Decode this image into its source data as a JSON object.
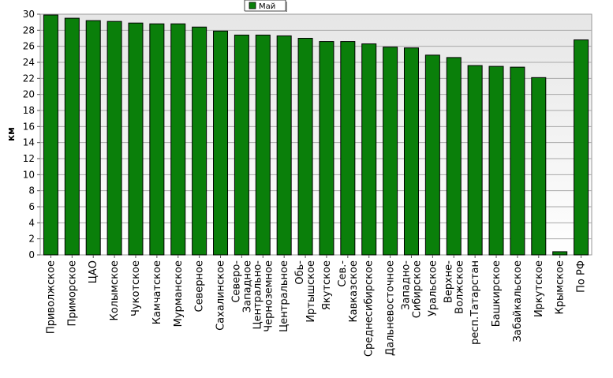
{
  "chart_data": {
    "type": "bar",
    "title": "",
    "xlabel": "",
    "ylabel": "км",
    "ylim": [
      0,
      30
    ],
    "ytick_step": 2,
    "grid": true,
    "legend_position": "top-center",
    "categories": [
      "Приволжское",
      "Приморское",
      "ЦАО",
      "Колымское",
      "Чукотское",
      "Камчатское",
      "Мурманское",
      "Северное",
      "Сахалинское",
      "Северо-Западное",
      "Центрально-Черноземное",
      "Центральное",
      "Обь-Иртышское",
      "Якутское",
      "Сев.-Кавказское",
      "Среднесибирское",
      "Дальневосточное",
      "Западно-Сибирское",
      "Уральское",
      "Верхне-Волжское",
      "респ.Татарстан",
      "Башкирское",
      "Забайкальское",
      "Иркутское",
      "Крымское",
      "По РФ"
    ],
    "series": [
      {
        "name": "Май",
        "color": "#0a7f0a",
        "values": [
          29.9,
          29.5,
          29.2,
          29.1,
          28.9,
          28.8,
          28.8,
          28.4,
          27.9,
          27.4,
          27.4,
          27.3,
          27.0,
          26.6,
          26.6,
          26.3,
          25.9,
          25.8,
          24.9,
          24.6,
          23.6,
          23.5,
          23.4,
          22.1,
          0.4,
          26.8
        ]
      }
    ]
  }
}
